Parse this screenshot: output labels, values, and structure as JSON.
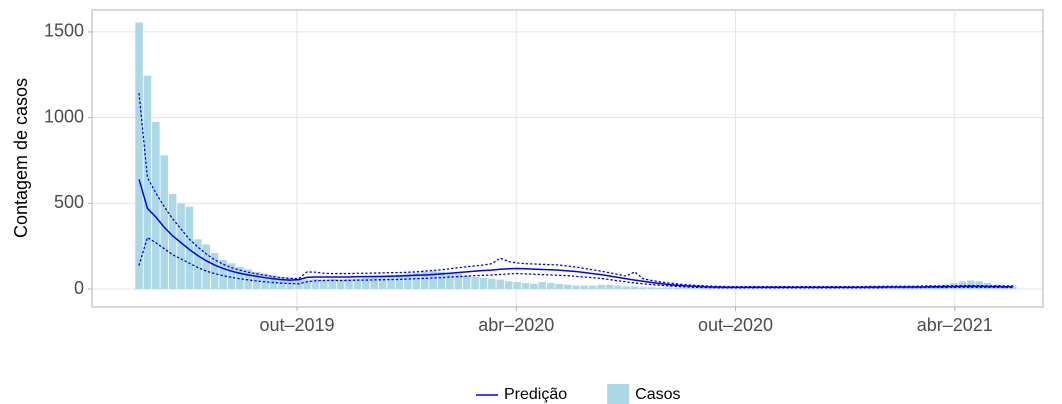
{
  "chart_data": {
    "type": "bar+line",
    "y_label": "Contagem de casos",
    "x": [
      0,
      1,
      2,
      3,
      4,
      5,
      6,
      7,
      8,
      9,
      10,
      11,
      12,
      13,
      14,
      15,
      16,
      17,
      18,
      19,
      20,
      21,
      22,
      23,
      24,
      25,
      26,
      27,
      28,
      29,
      30,
      31,
      32,
      33,
      34,
      35,
      36,
      37,
      38,
      39,
      40,
      41,
      42,
      43,
      44,
      45,
      46,
      47,
      48,
      49,
      50,
      51,
      52,
      53,
      54,
      55,
      56,
      57,
      58,
      59,
      60,
      61,
      62,
      63,
      64,
      65,
      66,
      67,
      68,
      69,
      70,
      71,
      72,
      73,
      74,
      75,
      76,
      77,
      78,
      79,
      80,
      81,
      82,
      83,
      84,
      85,
      86,
      87,
      88,
      89,
      90,
      91,
      92,
      93,
      94,
      95,
      96,
      97,
      98,
      99,
      100,
      101,
      102,
      103,
      104
    ],
    "xlim": [
      -5.6,
      107.6
    ],
    "xticks": [
      {
        "value": 18.8,
        "label": "out–2019"
      },
      {
        "value": 44.9,
        "label": "abr–2020"
      },
      {
        "value": 71.0,
        "label": "out–2020"
      },
      {
        "value": 97.1,
        "label": "abr–2021"
      }
    ],
    "ylim": [
      -105,
      1628
    ],
    "yticks": [
      0,
      500,
      1000,
      1500
    ],
    "grid": true,
    "legend": "bottom",
    "series": [
      {
        "name": "Predição",
        "type": "line",
        "color": "#0000ff",
        "values": [
          640,
          470,
          420,
          360,
          310,
          270,
          230,
          195,
          165,
          140,
          120,
          104,
          92,
          82,
          74,
          66,
          60,
          55,
          52,
          55,
          68,
          70,
          70,
          70,
          70,
          70,
          72,
          72,
          73,
          74,
          75,
          76,
          78,
          80,
          82,
          85,
          88,
          92,
          96,
          100,
          104,
          108,
          110,
          115,
          118,
          120,
          118,
          116,
          114,
          112,
          110,
          106,
          102,
          96,
          90,
          84,
          76,
          68,
          60,
          52,
          45,
          38,
          32,
          26,
          22,
          18,
          16,
          14,
          12,
          11,
          10,
          10,
          10,
          10,
          10,
          10,
          10,
          10,
          10,
          10,
          10,
          10,
          10,
          10,
          10,
          10,
          10,
          11,
          11,
          12,
          12,
          12,
          12,
          12,
          13,
          13,
          14,
          14,
          15,
          15,
          15,
          14,
          14,
          13,
          13
        ],
        "upper": [
          1140,
          650,
          560,
          480,
          410,
          350,
          290,
          245,
          205,
          170,
          145,
          125,
          110,
          98,
          88,
          80,
          72,
          66,
          62,
          60,
          100,
          98,
          92,
          90,
          90,
          90,
          92,
          92,
          93,
          94,
          95,
          96,
          98,
          100,
          104,
          108,
          112,
          118,
          124,
          130,
          135,
          140,
          148,
          180,
          160,
          152,
          148,
          146,
          144,
          142,
          140,
          134,
          128,
          120,
          112,
          104,
          95,
          85,
          76,
          100,
          60,
          50,
          42,
          35,
          30,
          25,
          22,
          19,
          17,
          15,
          14,
          14,
          14,
          14,
          14,
          14,
          14,
          14,
          14,
          14,
          14,
          14,
          14,
          14,
          14,
          14,
          14,
          15,
          15,
          16,
          16,
          16,
          16,
          17,
          18,
          18,
          19,
          19,
          20,
          20,
          20,
          19,
          19,
          18,
          18
        ],
        "lower": [
          140,
          300,
          270,
          235,
          200,
          175,
          150,
          125,
          105,
          90,
          78,
          68,
          60,
          53,
          47,
          42,
          38,
          34,
          32,
          30,
          42,
          48,
          50,
          50,
          50,
          50,
          52,
          52,
          53,
          54,
          55,
          56,
          58,
          60,
          62,
          64,
          66,
          70,
          72,
          75,
          78,
          80,
          82,
          85,
          88,
          90,
          88,
          86,
          84,
          82,
          80,
          78,
          74,
          70,
          66,
          62,
          55,
          48,
          42,
          35,
          30,
          26,
          22,
          18,
          15,
          12,
          10,
          9,
          8,
          7,
          7,
          7,
          7,
          7,
          7,
          7,
          7,
          7,
          7,
          7,
          7,
          7,
          7,
          7,
          7,
          7,
          7,
          7,
          7,
          8,
          8,
          8,
          8,
          8,
          9,
          9,
          9,
          10,
          10,
          10,
          10,
          10,
          10,
          9,
          9
        ]
      },
      {
        "name": "Casos",
        "type": "bar",
        "color": "#add8e6",
        "values": [
          1555,
          1245,
          975,
          780,
          555,
          500,
          480,
          290,
          260,
          210,
          170,
          150,
          130,
          115,
          100,
          90,
          80,
          70,
          65,
          55,
          55,
          60,
          55,
          60,
          55,
          60,
          60,
          65,
          70,
          75,
          80,
          85,
          90,
          95,
          100,
          105,
          100,
          95,
          90,
          80,
          70,
          65,
          60,
          55,
          45,
          40,
          35,
          30,
          40,
          35,
          30,
          25,
          20,
          20,
          20,
          25,
          25,
          20,
          15,
          15,
          10,
          10,
          8,
          8,
          6,
          5,
          5,
          5,
          5,
          5,
          5,
          5,
          5,
          5,
          5,
          5,
          5,
          5,
          5,
          5,
          5,
          5,
          5,
          5,
          5,
          5,
          5,
          5,
          5,
          5,
          5,
          8,
          10,
          12,
          15,
          20,
          25,
          35,
          45,
          50,
          45,
          35,
          25,
          20,
          15
        ]
      }
    ]
  }
}
